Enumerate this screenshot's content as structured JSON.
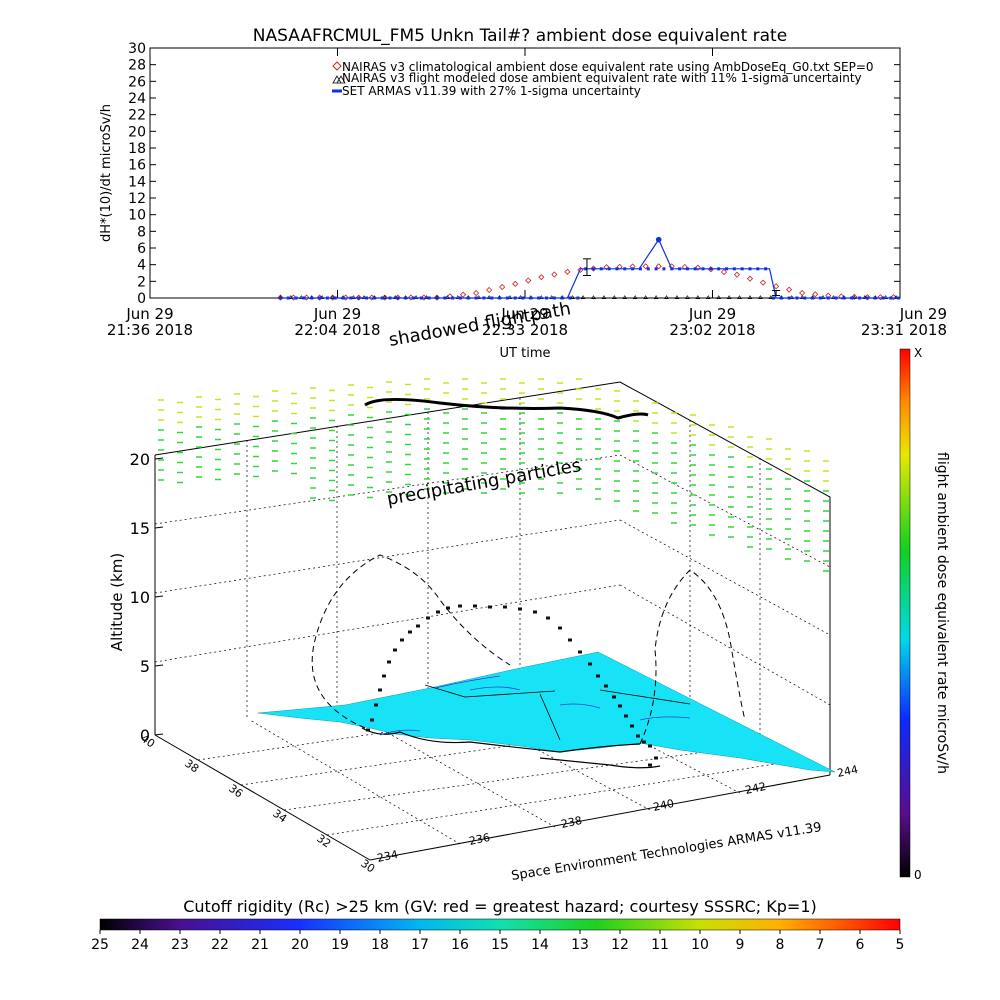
{
  "top_chart": {
    "title": "NASAAFRCMUL_FM5 Unkn Tail#? ambient dose equivalent rate",
    "ylabel": "dH*(10)/dt microSv/h",
    "xlabel": "UT time",
    "y_ticks": [
      "0",
      "2",
      "4",
      "6",
      "8",
      "10",
      "12",
      "14",
      "16",
      "18",
      "20",
      "22",
      "24",
      "26",
      "28",
      "30"
    ],
    "x_ticks": [
      {
        "date": "Jun 29",
        "time": "21:36 2018"
      },
      {
        "date": "Jun 29",
        "time": "22:04 2018"
      },
      {
        "date": "Jun 29",
        "time": "22:33 2018"
      },
      {
        "date": "Jun 29",
        "time": "23:02 2018"
      },
      {
        "date": "Jun 29",
        "time": "23:31 2018"
      }
    ],
    "legend": [
      "NAIRAS v3 climatological ambient dose equivalent rate using AmbDoseEq_G0.txt SEP=0",
      "NAIRAS v3 flight modeled dose ambient equivalent rate with 11% 1-sigma uncertainty",
      "SET ARMAS v11.39 with 27% 1-sigma uncertainty"
    ],
    "colors": {
      "nairas_clim": "#cc2222",
      "nairas_flight": "#000000",
      "armas": "#1030dd"
    }
  },
  "chart_data": [
    {
      "type": "line",
      "title": "NASAAFRCMUL_FM5 Unkn Tail#? ambient dose equivalent rate",
      "xlabel": "UT time",
      "ylabel": "dH*(10)/dt microSv/h",
      "xlim": [
        "21:36",
        "23:31"
      ],
      "ylim": [
        0,
        30
      ],
      "x_unit": "minutes after 21:36 UT",
      "series": [
        {
          "name": "NAIRAS v3 climatological ambient dose equivalent rate using AmbDoseEq_G0.txt SEP=0",
          "x": [
            45,
            50,
            55,
            60,
            65,
            70,
            75,
            80,
            85,
            90,
            95,
            100,
            105,
            110,
            115
          ],
          "y": [
            0.1,
            0.6,
            1.5,
            2.5,
            3.3,
            3.7,
            3.8,
            3.8,
            3.6,
            2.8,
            1.6,
            0.6,
            0.2,
            0.1,
            0.1
          ]
        },
        {
          "name": "NAIRAS v3 flight modeled dose ambient equivalent rate with 11% 1-sigma uncertainty",
          "x": [
            20,
            30,
            40,
            50,
            60,
            70,
            80,
            90,
            100,
            110,
            115
          ],
          "y": [
            0.1,
            0.1,
            0.1,
            0.1,
            0.1,
            0.1,
            0.1,
            0.1,
            0.1,
            0.1,
            0.1
          ]
        },
        {
          "name": "SET ARMAS v11.39 with 27% 1-sigma uncertainty",
          "x": [
            20,
            30,
            40,
            50,
            64,
            66,
            70,
            75,
            78,
            80,
            85,
            90,
            95,
            96,
            100,
            110,
            115
          ],
          "y": [
            0,
            0,
            0,
            0,
            0,
            3.5,
            3.5,
            3.5,
            7,
            3.5,
            3.5,
            3.5,
            3.5,
            0,
            0,
            0,
            0
          ]
        }
      ],
      "error_bars": [
        {
          "x": 67,
          "y": 3.7,
          "err": 1.0
        },
        {
          "x": 96,
          "y": 0.6,
          "err": 0.3
        }
      ],
      "legend": "top-right",
      "grid": false
    },
    {
      "type": "scatter",
      "title": "Space Environment Technologies ARMAS v11.39",
      "zlabel": "Altitude (km)",
      "z_ticks": [
        "0",
        "5",
        "10",
        "15",
        "20"
      ],
      "lat_ticks": [
        "40",
        "38",
        "36",
        "34",
        "32",
        "30"
      ],
      "lon_ticks": [
        "234",
        "236",
        "238",
        "240",
        "242",
        "244"
      ],
      "annotations": [
        "shadowed flightpath",
        "precipitating particles"
      ],
      "colorbar": {
        "label": "flight ambient dose equivalent rate microSv/h",
        "min": "0",
        "max": "X"
      }
    },
    {
      "type": "heatmap",
      "title": "Cutoff rigidity (Rc) >25 km (GV: red = greatest hazard; courtesy SSSRC; Kp=1)",
      "colorbar_ticks": [
        "25",
        "24",
        "23",
        "22",
        "21",
        "20",
        "19",
        "18",
        "17",
        "16",
        "15",
        "14",
        "13",
        "12",
        "11",
        "10",
        "9",
        "8",
        "7",
        "6",
        "5"
      ]
    }
  ],
  "plot3d": {
    "title": "Space Environment Technologies ARMAS v11.39",
    "zlabel": "Altitude (km)",
    "z_ticks": [
      "0",
      "5",
      "10",
      "15",
      "20"
    ],
    "lat_ticks": [
      "40",
      "38",
      "36",
      "34",
      "32",
      "30"
    ],
    "lon_ticks": [
      "234",
      "236",
      "238",
      "240",
      "242",
      "244"
    ],
    "annotation_shadow": "shadowed flightpath",
    "annotation_particles": "precipitating particles",
    "colorbar_label": "flight ambient dose equivalent rate microSv/h",
    "colorbar_max": "X",
    "colorbar_min": "0",
    "colors": {
      "surface": "#18e3f6",
      "particles_high": "#c8e320",
      "particles_low": "#33d63a"
    }
  },
  "bottom_bar": {
    "title": "Cutoff rigidity (Rc) >25 km (GV: red = greatest hazard; courtesy SSSRC; Kp=1)",
    "ticks": [
      "25",
      "24",
      "23",
      "22",
      "21",
      "20",
      "19",
      "18",
      "17",
      "16",
      "15",
      "14",
      "13",
      "12",
      "11",
      "10",
      "9",
      "8",
      "7",
      "6",
      "5"
    ]
  }
}
